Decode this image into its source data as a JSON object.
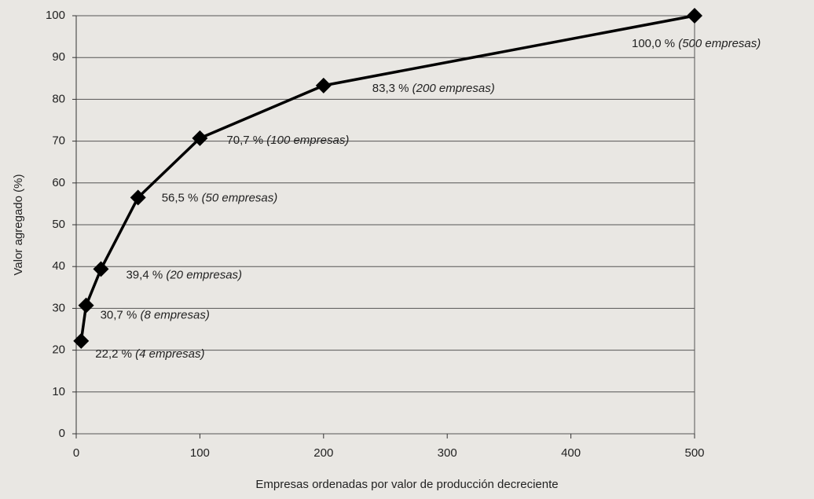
{
  "chart_data": {
    "type": "line",
    "x_label": "Empresas ordenadas por valor de producción decreciente",
    "y_label": "Valor agregado (%)",
    "x": [
      4,
      8,
      20,
      50,
      100,
      200,
      500
    ],
    "series": [
      {
        "color": "#000000",
        "values": [
          22.2,
          30.7,
          39.4,
          56.5,
          70.7,
          83.3,
          100.0
        ],
        "value_labels": [
          "22,2 %",
          "30,7 %",
          "39,4 %",
          "56,5 %",
          "70,7 %",
          "83,3 %",
          "100,0 %"
        ],
        "point_notes": [
          "(4 empresas)",
          "(8 empresas)",
          "(20 empresas)",
          "(50 empresas)",
          "(100 empresas)",
          "(200 empresas)",
          "(500 empresas)"
        ]
      }
    ],
    "xlim": [
      0,
      500
    ],
    "xticks": [
      0,
      100,
      200,
      300,
      400,
      500
    ],
    "ylim": [
      0,
      100
    ],
    "yticks": [
      0,
      10,
      20,
      30,
      40,
      50,
      60,
      70,
      80,
      90,
      100
    ],
    "grid": true
  }
}
